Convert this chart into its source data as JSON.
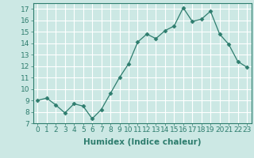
{
  "x": [
    0,
    1,
    2,
    3,
    4,
    5,
    6,
    7,
    8,
    9,
    10,
    11,
    12,
    13,
    14,
    15,
    16,
    17,
    18,
    19,
    20,
    21,
    22,
    23
  ],
  "y": [
    9.0,
    9.2,
    8.6,
    7.9,
    8.7,
    8.5,
    7.4,
    8.2,
    9.6,
    11.0,
    12.2,
    14.1,
    14.8,
    14.4,
    15.1,
    15.5,
    17.1,
    15.9,
    16.1,
    16.8,
    14.8,
    13.9,
    12.4,
    11.9
  ],
  "line_color": "#2e7d6e",
  "marker": "D",
  "marker_size": 2.5,
  "bg_color": "#cce8e4",
  "grid_color": "#ffffff",
  "xlabel": "Humidex (Indice chaleur)",
  "xlim": [
    -0.5,
    23.5
  ],
  "ylim": [
    7,
    17.5
  ],
  "yticks": [
    7,
    8,
    9,
    10,
    11,
    12,
    13,
    14,
    15,
    16,
    17
  ],
  "xticks": [
    0,
    1,
    2,
    3,
    4,
    5,
    6,
    7,
    8,
    9,
    10,
    11,
    12,
    13,
    14,
    15,
    16,
    17,
    18,
    19,
    20,
    21,
    22,
    23
  ],
  "tick_fontsize": 6.5,
  "xlabel_fontsize": 7.5,
  "label_color": "#2e7d6e"
}
